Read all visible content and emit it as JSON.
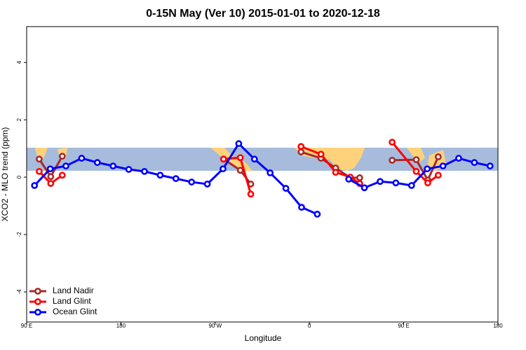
{
  "chart_data": {
    "type": "line",
    "title": "0-15N May (Ver 10)   2015-01-01 to 2020-12-18",
    "x_label": "Longitude",
    "y_label": "XCO2 - MLO trend (ppm)",
    "xlim": [
      90,
      540
    ],
    "ylim": [
      -5.05,
      5.25
    ],
    "xticks": [
      {
        "value": 90,
        "label": "90 E"
      },
      180,
      {
        "value": 270,
        "label": "90 W"
      },
      {
        "value": 360,
        "label": "0"
      },
      {
        "value": 450,
        "label": "90 E"
      },
      {
        "value": 540,
        "label": "180"
      }
    ],
    "yticks": [
      -4,
      -2,
      0,
      2,
      4
    ],
    "legend": "bottom-left",
    "series": [
      {
        "name": "Land Nadir",
        "color": "#a52a2a",
        "x": [
          102,
          113,
          124,
          null,
          278,
          294,
          304,
          null,
          352,
          371,
          385,
          399,
          408,
          null,
          439,
          462,
          473,
          483
        ],
        "values": [
          0.63,
          0.02,
          0.73,
          null,
          0.63,
          0.24,
          -0.24,
          null,
          0.88,
          0.66,
          0.32,
          -0.02,
          -0.02,
          null,
          0.59,
          0.61,
          -0.1,
          0.71
        ]
      },
      {
        "name": "Land Glint",
        "color": "#ff0000",
        "x": [
          102,
          113,
          124,
          null,
          278,
          294,
          304,
          null,
          352,
          371,
          385,
          399,
          408,
          null,
          439,
          462,
          473,
          483
        ],
        "values": [
          0.2,
          -0.22,
          0.07,
          null,
          0.63,
          0.68,
          -0.59,
          null,
          1.07,
          0.8,
          0.17,
          0,
          -0.22,
          null,
          1.22,
          0.2,
          -0.2,
          0.07
        ]
      },
      {
        "name": "Ocean Glint",
        "color": "#0000ff",
        "x": [
          97.5,
          112.5,
          127.5,
          142.5,
          157.5,
          172.5,
          187.5,
          202.5,
          217.5,
          232.5,
          247.5,
          262.5,
          277.5,
          292.5,
          307.5,
          322.5,
          337.5,
          352.5,
          367.5,
          382.5,
          397.5,
          412.5,
          427.5,
          442.5,
          457.5,
          472.5,
          487.5,
          502.5,
          517.5,
          532.5
        ],
        "values": [
          -0.29,
          0.29,
          0.39,
          0.66,
          0.51,
          0.39,
          0.27,
          0.2,
          0.07,
          -0.05,
          -0.17,
          -0.24,
          0.29,
          1.17,
          0.63,
          0.15,
          -0.39,
          -1.05,
          -1.29,
          null,
          -0.07,
          -0.37,
          -0.15,
          -0.2,
          -0.29,
          0.29,
          0.39,
          0.66,
          0.51,
          0.39
        ]
      }
    ]
  }
}
